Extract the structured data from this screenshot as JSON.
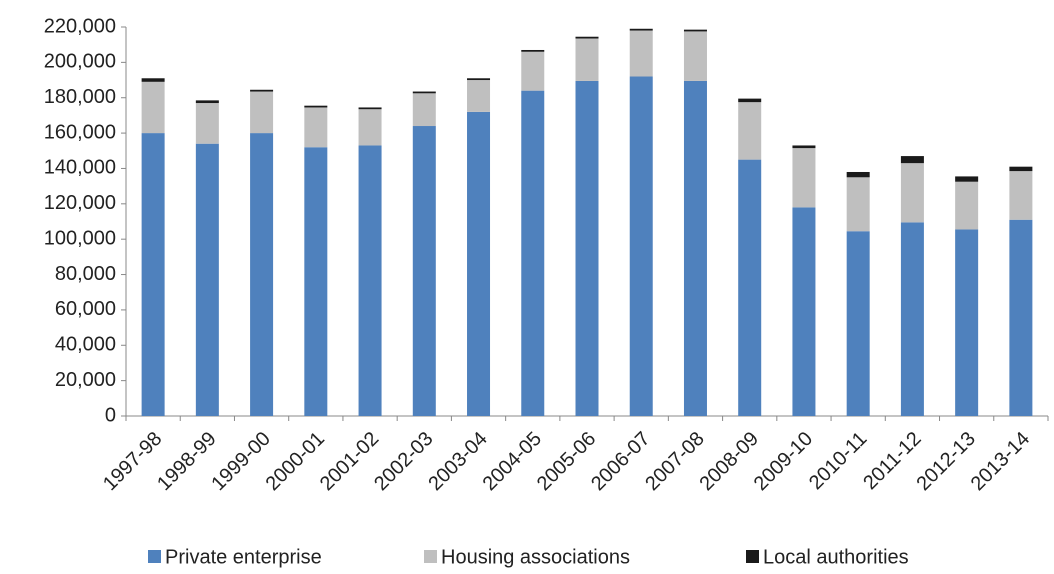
{
  "chart_data": {
    "type": "stacked-bar",
    "categories": [
      "1997-98",
      "1998-99",
      "1999-00",
      "2000-01",
      "2001-02",
      "2002-03",
      "2003-04",
      "2004-05",
      "2005-06",
      "2006-07",
      "2007-08",
      "2008-09",
      "2009-10",
      "2010-11",
      "2011-12",
      "2012-13",
      "2013-14"
    ],
    "series": [
      {
        "name": "Private enterprise",
        "color": "#4f81bd",
        "values": [
          160000,
          154000,
          160000,
          152000,
          153000,
          164000,
          172000,
          184000,
          189500,
          192000,
          189500,
          145000,
          118000,
          104500,
          109500,
          105500,
          111000
        ]
      },
      {
        "name": "Housing associations",
        "color": "#bfbfbf",
        "values": [
          29000,
          23000,
          23500,
          22500,
          20500,
          18500,
          18000,
          22000,
          24000,
          26000,
          28000,
          32500,
          33500,
          30500,
          33500,
          27000,
          27500
        ]
      },
      {
        "name": "Local authorities",
        "color": "#1a1a1a",
        "values": [
          2000,
          1500,
          1000,
          1000,
          1000,
          1000,
          1000,
          1000,
          1000,
          1000,
          1000,
          2000,
          1500,
          3000,
          4000,
          3000,
          2500
        ]
      }
    ],
    "ylim": [
      0,
      220000
    ],
    "yticks": [
      0,
      {
        "value": 20000,
        "label": "20,000"
      },
      {
        "value": 40000,
        "label": "40,000"
      },
      {
        "value": 60000,
        "label": "60,000"
      },
      {
        "value": 80000,
        "label": "80,000"
      },
      {
        "value": 100000,
        "label": "100,000"
      },
      {
        "value": 120000,
        "label": "120,000"
      },
      {
        "value": 140000,
        "label": "140,000"
      },
      {
        "value": 160000,
        "label": "160,000"
      },
      {
        "value": 180000,
        "label": "180,000"
      },
      {
        "value": 200000,
        "label": "200,000"
      },
      {
        "value": 220000,
        "label": "220,000"
      }
    ],
    "grid": false,
    "legend": "bottom"
  }
}
